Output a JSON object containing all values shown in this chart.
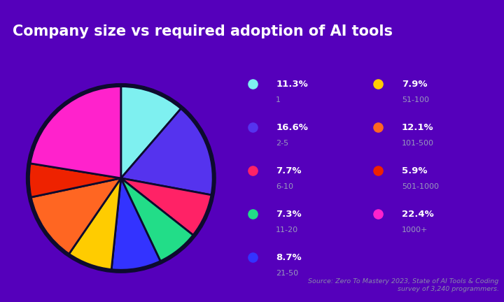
{
  "title": "Company size vs required adoption of AI tools",
  "title_color": "#ffffff",
  "title_bg_color": "#5500bb",
  "chart_bg_color": "#0d0b2e",
  "panel_bg_color": "#100e30",
  "source_text": "Source: Zero To Mastery 2023, State of AI Tools & Coding\nsurvey of 3,240 programmers.",
  "slices": [
    {
      "label": "1",
      "pct": 11.3,
      "color": "#7ef0f0"
    },
    {
      "label": "2-5",
      "pct": 16.6,
      "color": "#5533ee"
    },
    {
      "label": "6-10",
      "pct": 7.7,
      "color": "#ff2266"
    },
    {
      "label": "11-20",
      "pct": 7.3,
      "color": "#22dd88"
    },
    {
      "label": "21-50",
      "pct": 8.7,
      "color": "#3333ff"
    },
    {
      "label": "51-100",
      "pct": 7.9,
      "color": "#ffcc00"
    },
    {
      "label": "101-500",
      "pct": 12.1,
      "color": "#ff6622"
    },
    {
      "label": "501-1000",
      "pct": 5.9,
      "color": "#ee2200"
    },
    {
      "label": "1000+",
      "pct": 22.4,
      "color": "#ff22cc"
    }
  ],
  "legend_pcts": [
    "11.3%",
    "16.6%",
    "7.7%",
    "7.3%",
    "8.7%",
    "7.9%",
    "12.1%",
    "5.9%",
    "22.4%"
  ],
  "legend_labels": [
    "1",
    "2-5",
    "6-10",
    "11-20",
    "21-50",
    "51-100",
    "101-500",
    "501-1000",
    "1000+"
  ],
  "legend_colors": [
    "#7ef0f0",
    "#5533ee",
    "#ff2266",
    "#22dd88",
    "#3333ff",
    "#ffcc00",
    "#ff6622",
    "#ee2200",
    "#ff22cc"
  ],
  "pie_edge_color": "#0d0b2e",
  "pie_linewidth": 2.0
}
